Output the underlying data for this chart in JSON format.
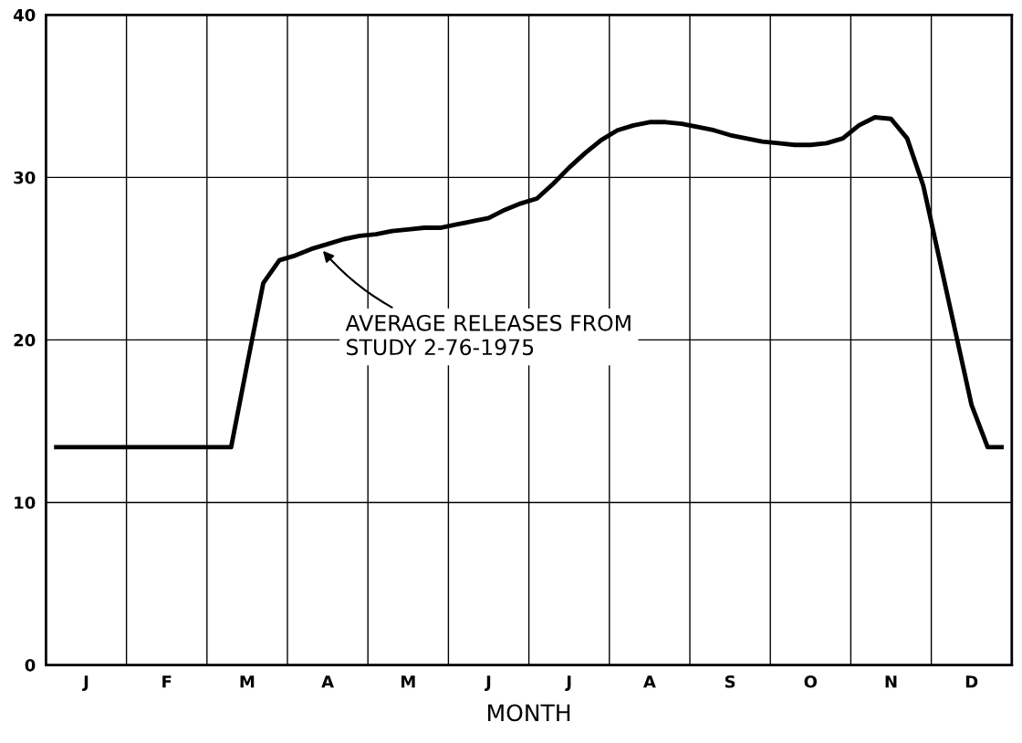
{
  "chart_data": {
    "type": "line",
    "xlabel": "MONTH",
    "categories": [
      null,
      null,
      "J",
      null,
      null,
      null,
      null,
      "F",
      null,
      null,
      null,
      null,
      "M",
      null,
      null,
      null,
      null,
      "A",
      null,
      null,
      null,
      null,
      "M",
      null,
      null,
      null,
      null,
      "J",
      null,
      null,
      null,
      null,
      "J",
      null,
      null,
      null,
      null,
      "A",
      null,
      null,
      null,
      null,
      "S",
      null,
      null,
      null,
      null,
      "O",
      null,
      null,
      null,
      null,
      "N",
      null,
      null,
      null,
      null,
      "D",
      null,
      null
    ],
    "series": [
      {
        "color": "#000000",
        "values": [
          13.4,
          13.4,
          13.4,
          13.4,
          13.4,
          13.4,
          13.4,
          13.4,
          13.4,
          13.4,
          13.4,
          13.4,
          18.5,
          23.5,
          24.9,
          25.2,
          25.6,
          25.9,
          26.2,
          26.4,
          26.5,
          26.7,
          26.8,
          26.9,
          26.9,
          27.1,
          27.3,
          27.5,
          28.0,
          28.4,
          28.7,
          29.6,
          30.6,
          31.5,
          32.3,
          32.9,
          33.2,
          33.4,
          33.4,
          33.3,
          33.1,
          32.9,
          32.6,
          32.4,
          32.2,
          32.1,
          32.0,
          32.0,
          32.1,
          32.4,
          33.2,
          33.7,
          33.6,
          32.4,
          29.5,
          25.0,
          20.5,
          16.0,
          13.4,
          13.4
        ]
      }
    ],
    "ylim": [
      0,
      40
    ],
    "yticks": [
      0,
      10,
      20,
      30,
      40
    ],
    "grid": true,
    "legend": false,
    "marker": "none",
    "line_style": "solid",
    "annotations": [
      "AVERAGE RELEASES FROM\nSTUDY 2-76-1975"
    ]
  }
}
